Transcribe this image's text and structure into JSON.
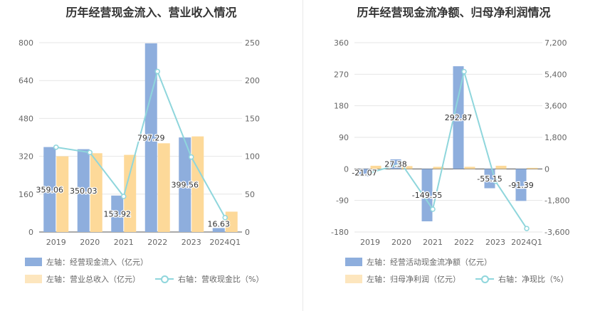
{
  "chart_data": [
    {
      "type": "bar",
      "title": "历年经营现金流入、营业收入情况",
      "categories": [
        "2019",
        "2020",
        "2021",
        "2022",
        "2023",
        "2024Q1"
      ],
      "left_axis": {
        "ylim": [
          0,
          800
        ],
        "ticks": [
          "0",
          "160",
          "320",
          "480",
          "640",
          "800"
        ]
      },
      "right_axis": {
        "ylim": [
          0,
          250
        ],
        "ticks": [
          "0",
          "50",
          "100",
          "150",
          "200",
          "250"
        ]
      },
      "series": [
        {
          "name": "左轴：经营现金流入（亿元）",
          "kind": "bar",
          "axis": "left",
          "color": "#8eaedd",
          "values": [
            359.06,
            350.03,
            153.92,
            797.29,
            399.56,
            16.63
          ],
          "labels": [
            "359.06",
            "350.03",
            "153.92",
            "797.29",
            "399.56",
            "16.63"
          ]
        },
        {
          "name": "左轴：营业总收入（亿元）",
          "kind": "bar",
          "axis": "left",
          "color": "#fdd999",
          "values": [
            320,
            333,
            326,
            375,
            404,
            86
          ]
        },
        {
          "name": "右轴：营收现金比（%）",
          "kind": "line",
          "axis": "right",
          "color": "#8fd6dc",
          "values": [
            112,
            105,
            47,
            212,
            99,
            19
          ]
        }
      ],
      "legend": "bottom"
    },
    {
      "type": "bar",
      "title": "历年经营现金流净额、归母净利润情况",
      "categories": [
        "2019",
        "2020",
        "2021",
        "2022",
        "2023",
        "2024Q1"
      ],
      "left_axis": {
        "ylim": [
          -180,
          360
        ],
        "ticks": [
          "-180",
          "-90",
          "0",
          "90",
          "180",
          "270",
          "360"
        ]
      },
      "right_axis": {
        "ylim": [
          -3600,
          7200
        ],
        "ticks": [
          "-3,600",
          "-1,800",
          "0",
          "1,800",
          "3,600",
          "5,400",
          "7,200"
        ]
      },
      "series": [
        {
          "name": "左轴：经营活动现金流净额（亿元）",
          "kind": "bar",
          "axis": "left",
          "color": "#8eaedd",
          "values": [
            -21.07,
            27.38,
            -149.55,
            292.87,
            -55.15,
            -91.39
          ],
          "labels": [
            "-21.07",
            "27.38",
            "-149.55",
            "292.87",
            "-55.15",
            "-91.39"
          ]
        },
        {
          "name": "左轴：归母净利润（亿元）",
          "kind": "bar",
          "axis": "left",
          "color": "#fdd999",
          "values": [
            9,
            8,
            6,
            6,
            9,
            3
          ]
        },
        {
          "name": "右轴：净现比（%）",
          "kind": "line",
          "axis": "right",
          "color": "#8fd6dc",
          "values": [
            -220,
            300,
            -2300,
            5550,
            -700,
            -3400
          ]
        }
      ],
      "legend": "bottom"
    }
  ]
}
